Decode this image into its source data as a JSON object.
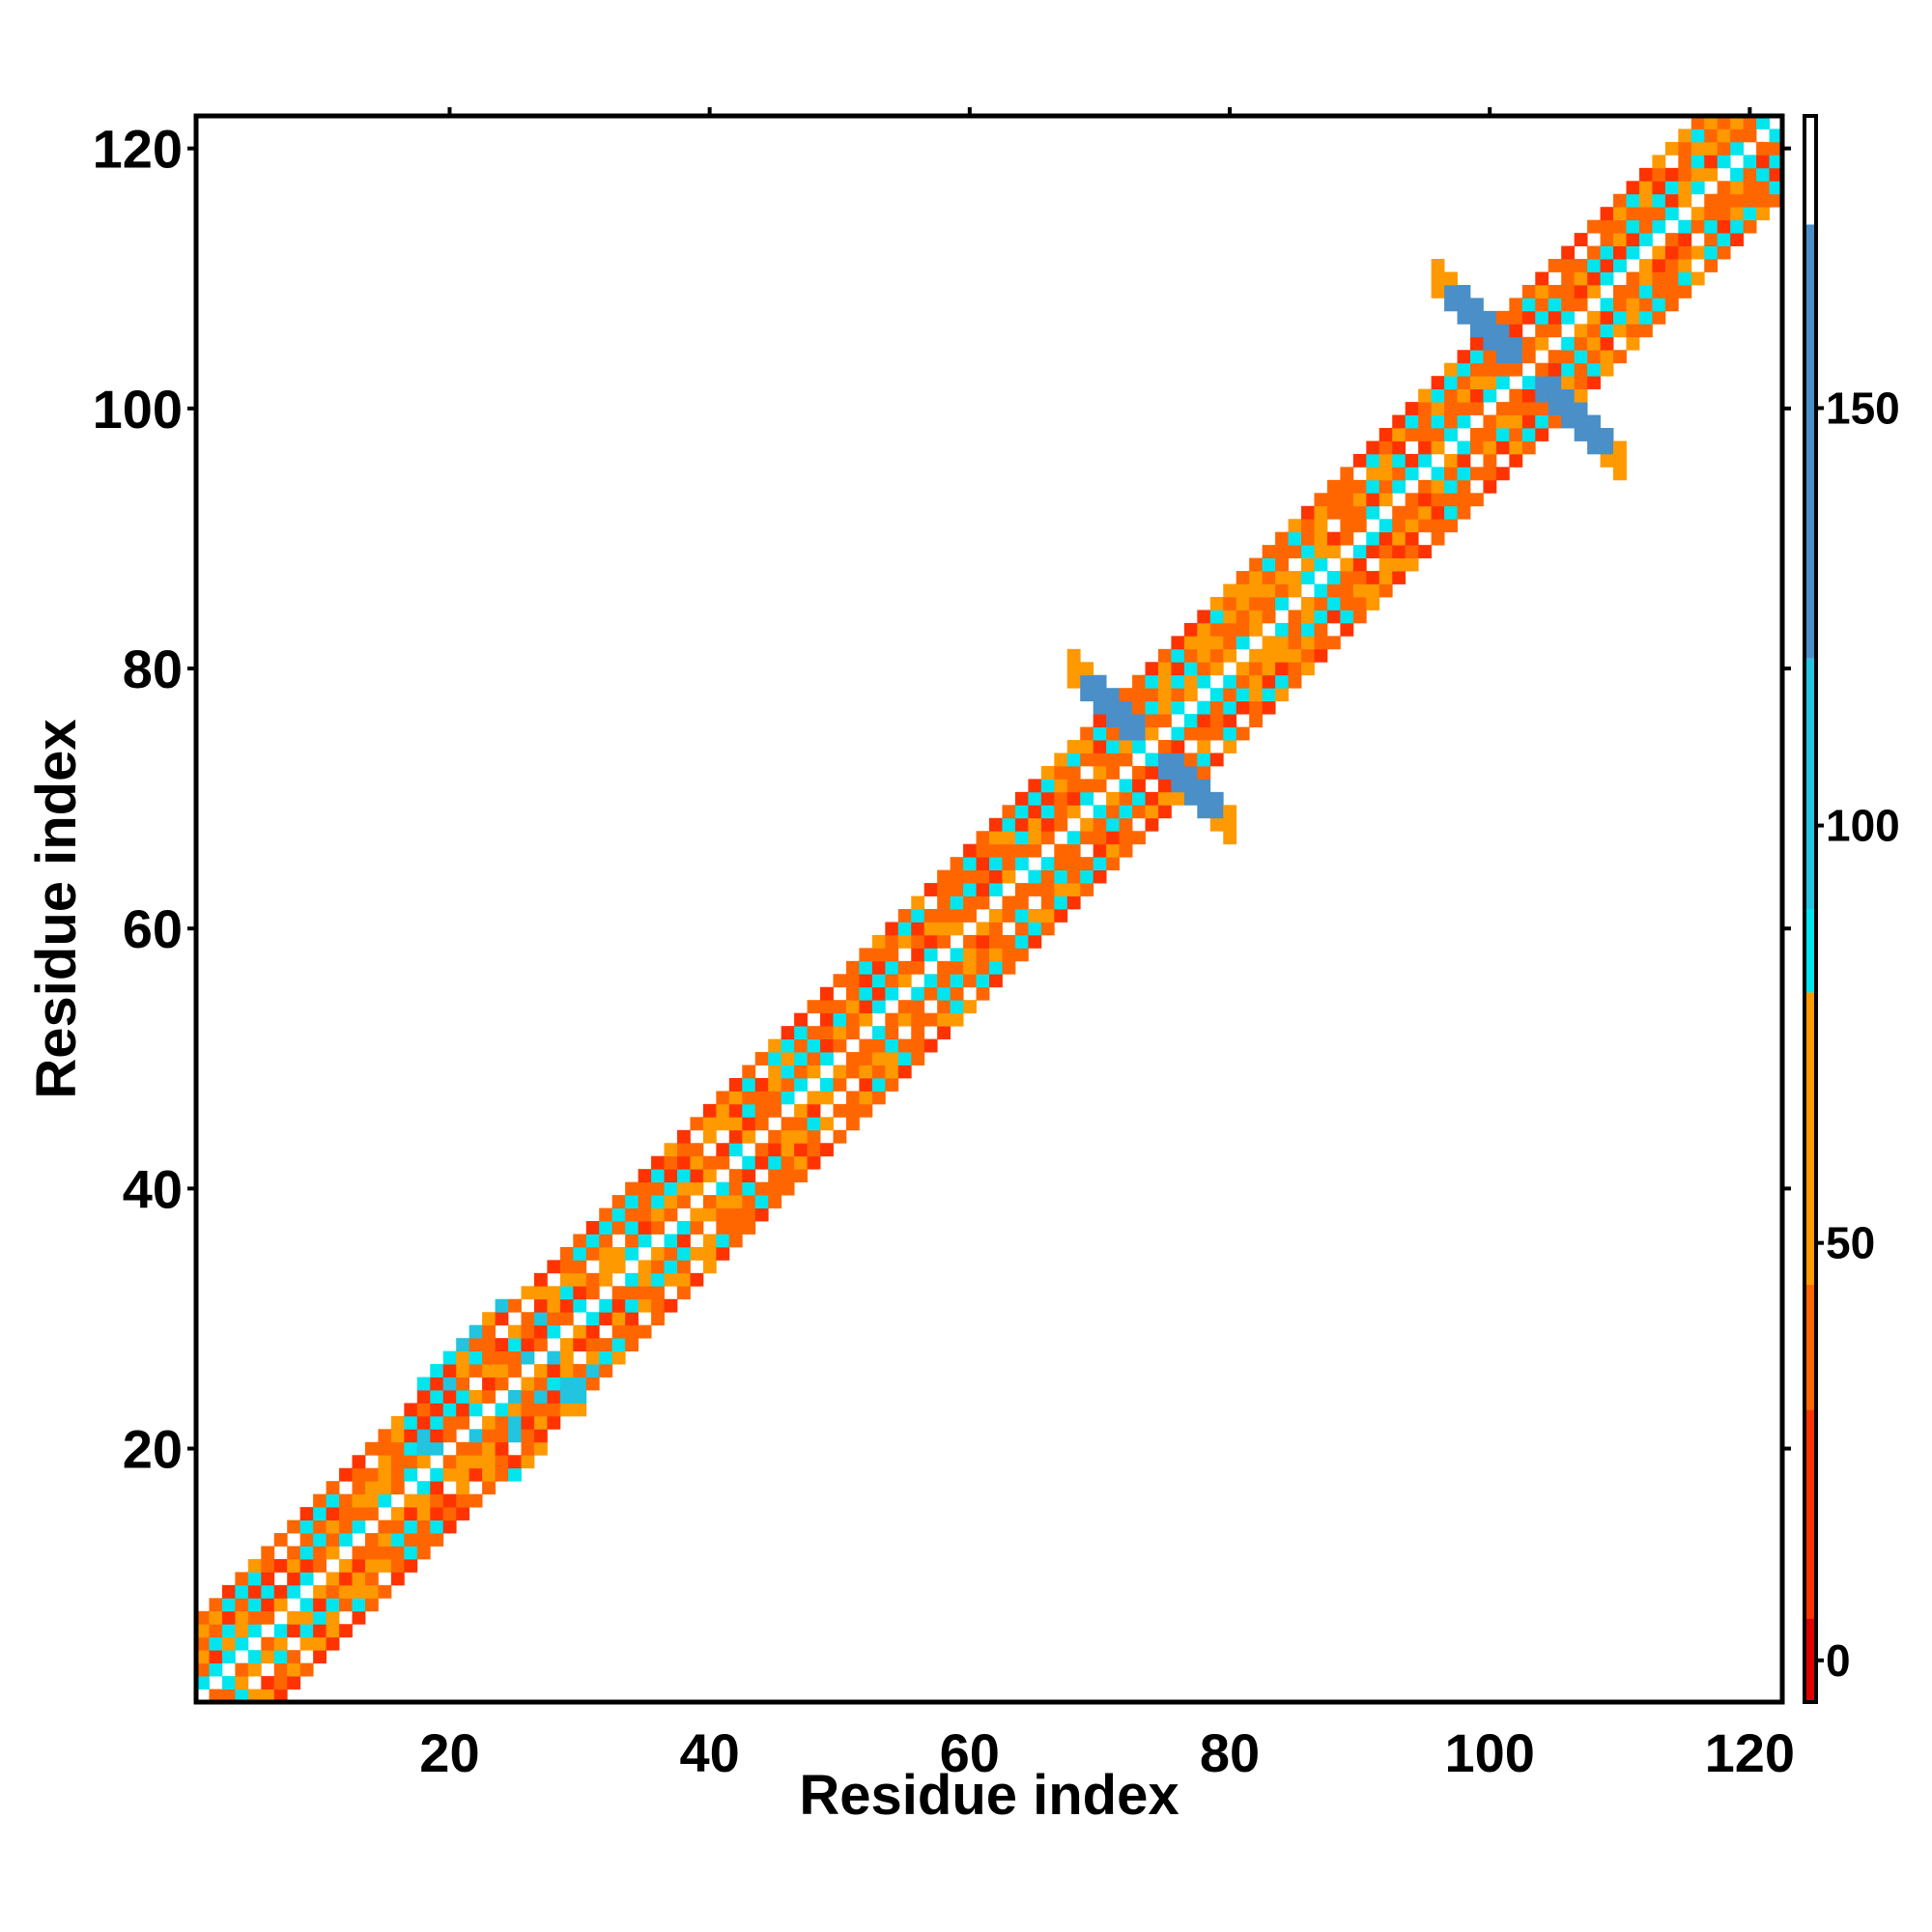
{
  "chart_data": {
    "type": "heatmap",
    "xlabel": "Residue index",
    "ylabel": "Residue index",
    "xlim": [
      0.5,
      122.5
    ],
    "ylim": [
      0.5,
      122.5
    ],
    "x_ticks": [
      20,
      40,
      60,
      80,
      100,
      120
    ],
    "y_ticks": [
      20,
      40,
      60,
      80,
      100,
      120
    ],
    "x_tick_labels": [
      "20",
      "40",
      "60",
      "80",
      "100",
      "120"
    ],
    "y_tick_labels": [
      "20",
      "40",
      "60",
      "80",
      "100",
      "120"
    ],
    "n_residues": 122,
    "band_half_width": 6,
    "colorbar": {
      "range": [
        -5,
        185
      ],
      "ticks": [
        0,
        50,
        100,
        150
      ],
      "tick_labels": [
        "0",
        "50",
        "100",
        "150"
      ],
      "segments": [
        {
          "from": -5,
          "to": 5,
          "color": "#dd0000"
        },
        {
          "from": 5,
          "to": 30,
          "color": "#ff3300"
        },
        {
          "from": 30,
          "to": 45,
          "color": "#ff6600"
        },
        {
          "from": 45,
          "to": 80,
          "color": "#ff9900"
        },
        {
          "from": 80,
          "to": 90,
          "color": "#00e5ee"
        },
        {
          "from": 90,
          "to": 120,
          "color": "#22c4e0"
        },
        {
          "from": 120,
          "to": 172,
          "color": "#4a8fc7"
        },
        {
          "from": 172,
          "to": 185,
          "color": "#ffffff"
        }
      ]
    },
    "cross_features": [
      {
        "center": 74,
        "arm_length": 6,
        "value": 140
      },
      {
        "center": 103,
        "arm_length": 7,
        "value": 140
      }
    ],
    "broad_regions": [
      {
        "from": 18,
        "to": 31
      }
    ],
    "diagonal_value": 180,
    "colors": {
      "red": "#ee0000",
      "red_orange": "#ff3300",
      "orange": "#ff6600",
      "light_orange": "#ff9900",
      "cyan": "#00e5ee",
      "steel_blue": "#4a8fc7"
    }
  }
}
